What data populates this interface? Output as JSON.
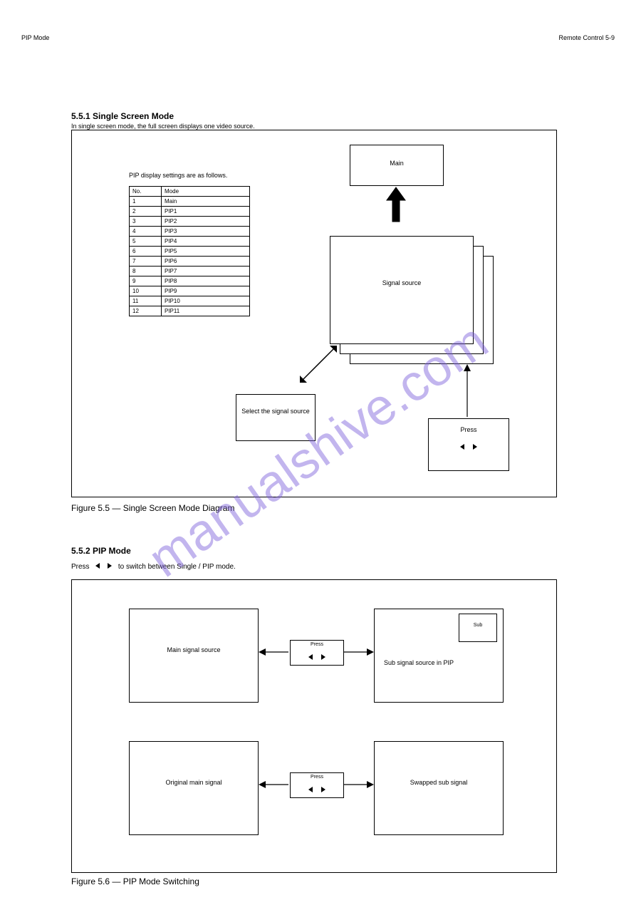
{
  "header": {
    "left": "PIP Mode",
    "right": "Remote Control 5-9"
  },
  "figure1": {
    "title": "5.5.1 Single Screen Mode",
    "subtitle": "In single screen mode, the full screen displays one video source.",
    "table_caption": "PIP display settings are as follows.",
    "table": {
      "columns": [
        "No.",
        "Mode"
      ],
      "rows": [
        [
          "1",
          "Main"
        ],
        [
          "2",
          "PIP1"
        ],
        [
          "3",
          "PIP2"
        ],
        [
          "4",
          "PIP3"
        ],
        [
          "5",
          "PIP4"
        ],
        [
          "6",
          "PIP5"
        ],
        [
          "7",
          "PIP6"
        ],
        [
          "8",
          "PIP7"
        ],
        [
          "9",
          "PIP8"
        ],
        [
          "10",
          "PIP9"
        ],
        [
          "11",
          "PIP10"
        ],
        [
          "12",
          "PIP11"
        ]
      ]
    },
    "main_label": "Main",
    "signal_label": "Signal source",
    "select_label": "Select the signal source",
    "nav_label": "Press",
    "caption": "Figure 5.5 — Single Screen Mode Diagram"
  },
  "figure2": {
    "title": "5.5.2 PIP Mode",
    "intro_prefix": "Press",
    "intro_suffix": "to switch between Single / PIP mode.",
    "sub_label": "Sub",
    "nav_label": "Press",
    "row1_left": "Main signal source",
    "row1_right": "Sub signal source in PIP",
    "row2_left": "Original main signal",
    "row2_right": "Swapped sub signal",
    "caption": "Figure 5.6 — PIP Mode Switching"
  },
  "watermark": "manualshive.com",
  "style": {
    "border_color": "#000000",
    "background": "#ffffff",
    "watermark_color": "#7a5cdb"
  }
}
